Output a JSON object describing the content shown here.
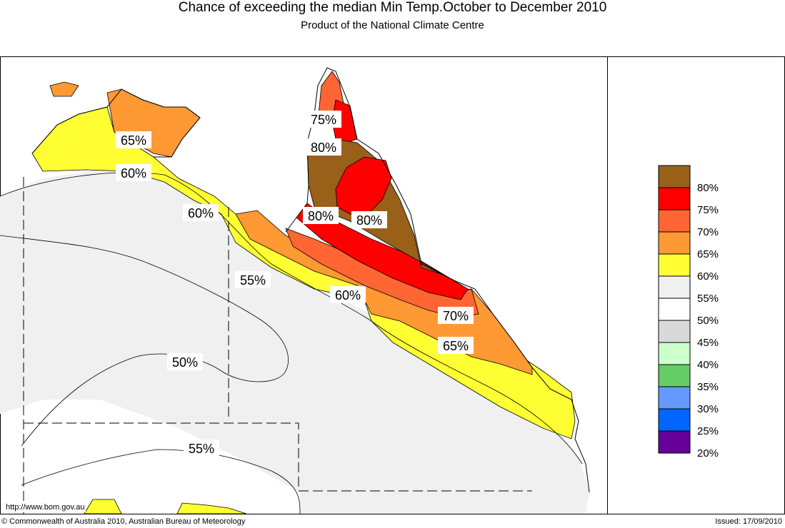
{
  "header": {
    "title": "Chance of exceeding the median Min Temp.October to December 2010",
    "subtitle": "Product of the National Climate Centre"
  },
  "map": {
    "contour_labels": [
      "65%",
      "60%",
      "60%",
      "75%",
      "80%",
      "80%",
      "80%",
      "55%",
      "60%",
      "70%",
      "65%",
      "50%",
      "55%"
    ],
    "url": "http://www.bom.gov.au"
  },
  "legend": {
    "items": [
      {
        "label": "80%",
        "color": "#99601a"
      },
      {
        "label": "75%",
        "color": "#ff0000"
      },
      {
        "label": "70%",
        "color": "#ff6633"
      },
      {
        "label": "65%",
        "color": "#ff9933"
      },
      {
        "label": "60%",
        "color": "#ffff33"
      },
      {
        "label": "55%",
        "color": "#f0f0f0"
      },
      {
        "label": "50%",
        "color": "#ffffff"
      },
      {
        "label": "45%",
        "color": "#d9d9d9"
      },
      {
        "label": "40%",
        "color": "#ccffcc"
      },
      {
        "label": "35%",
        "color": "#66cc66"
      },
      {
        "label": "30%",
        "color": "#6699ff"
      },
      {
        "label": "25%",
        "color": "#0066ff"
      },
      {
        "label": "20%",
        "color": "#660099"
      }
    ]
  },
  "footer": {
    "copyright": "© Commonwealth of Australia 2010, Australian Bureau of Meteorology",
    "issued": "Issued: 17/09/2010"
  }
}
